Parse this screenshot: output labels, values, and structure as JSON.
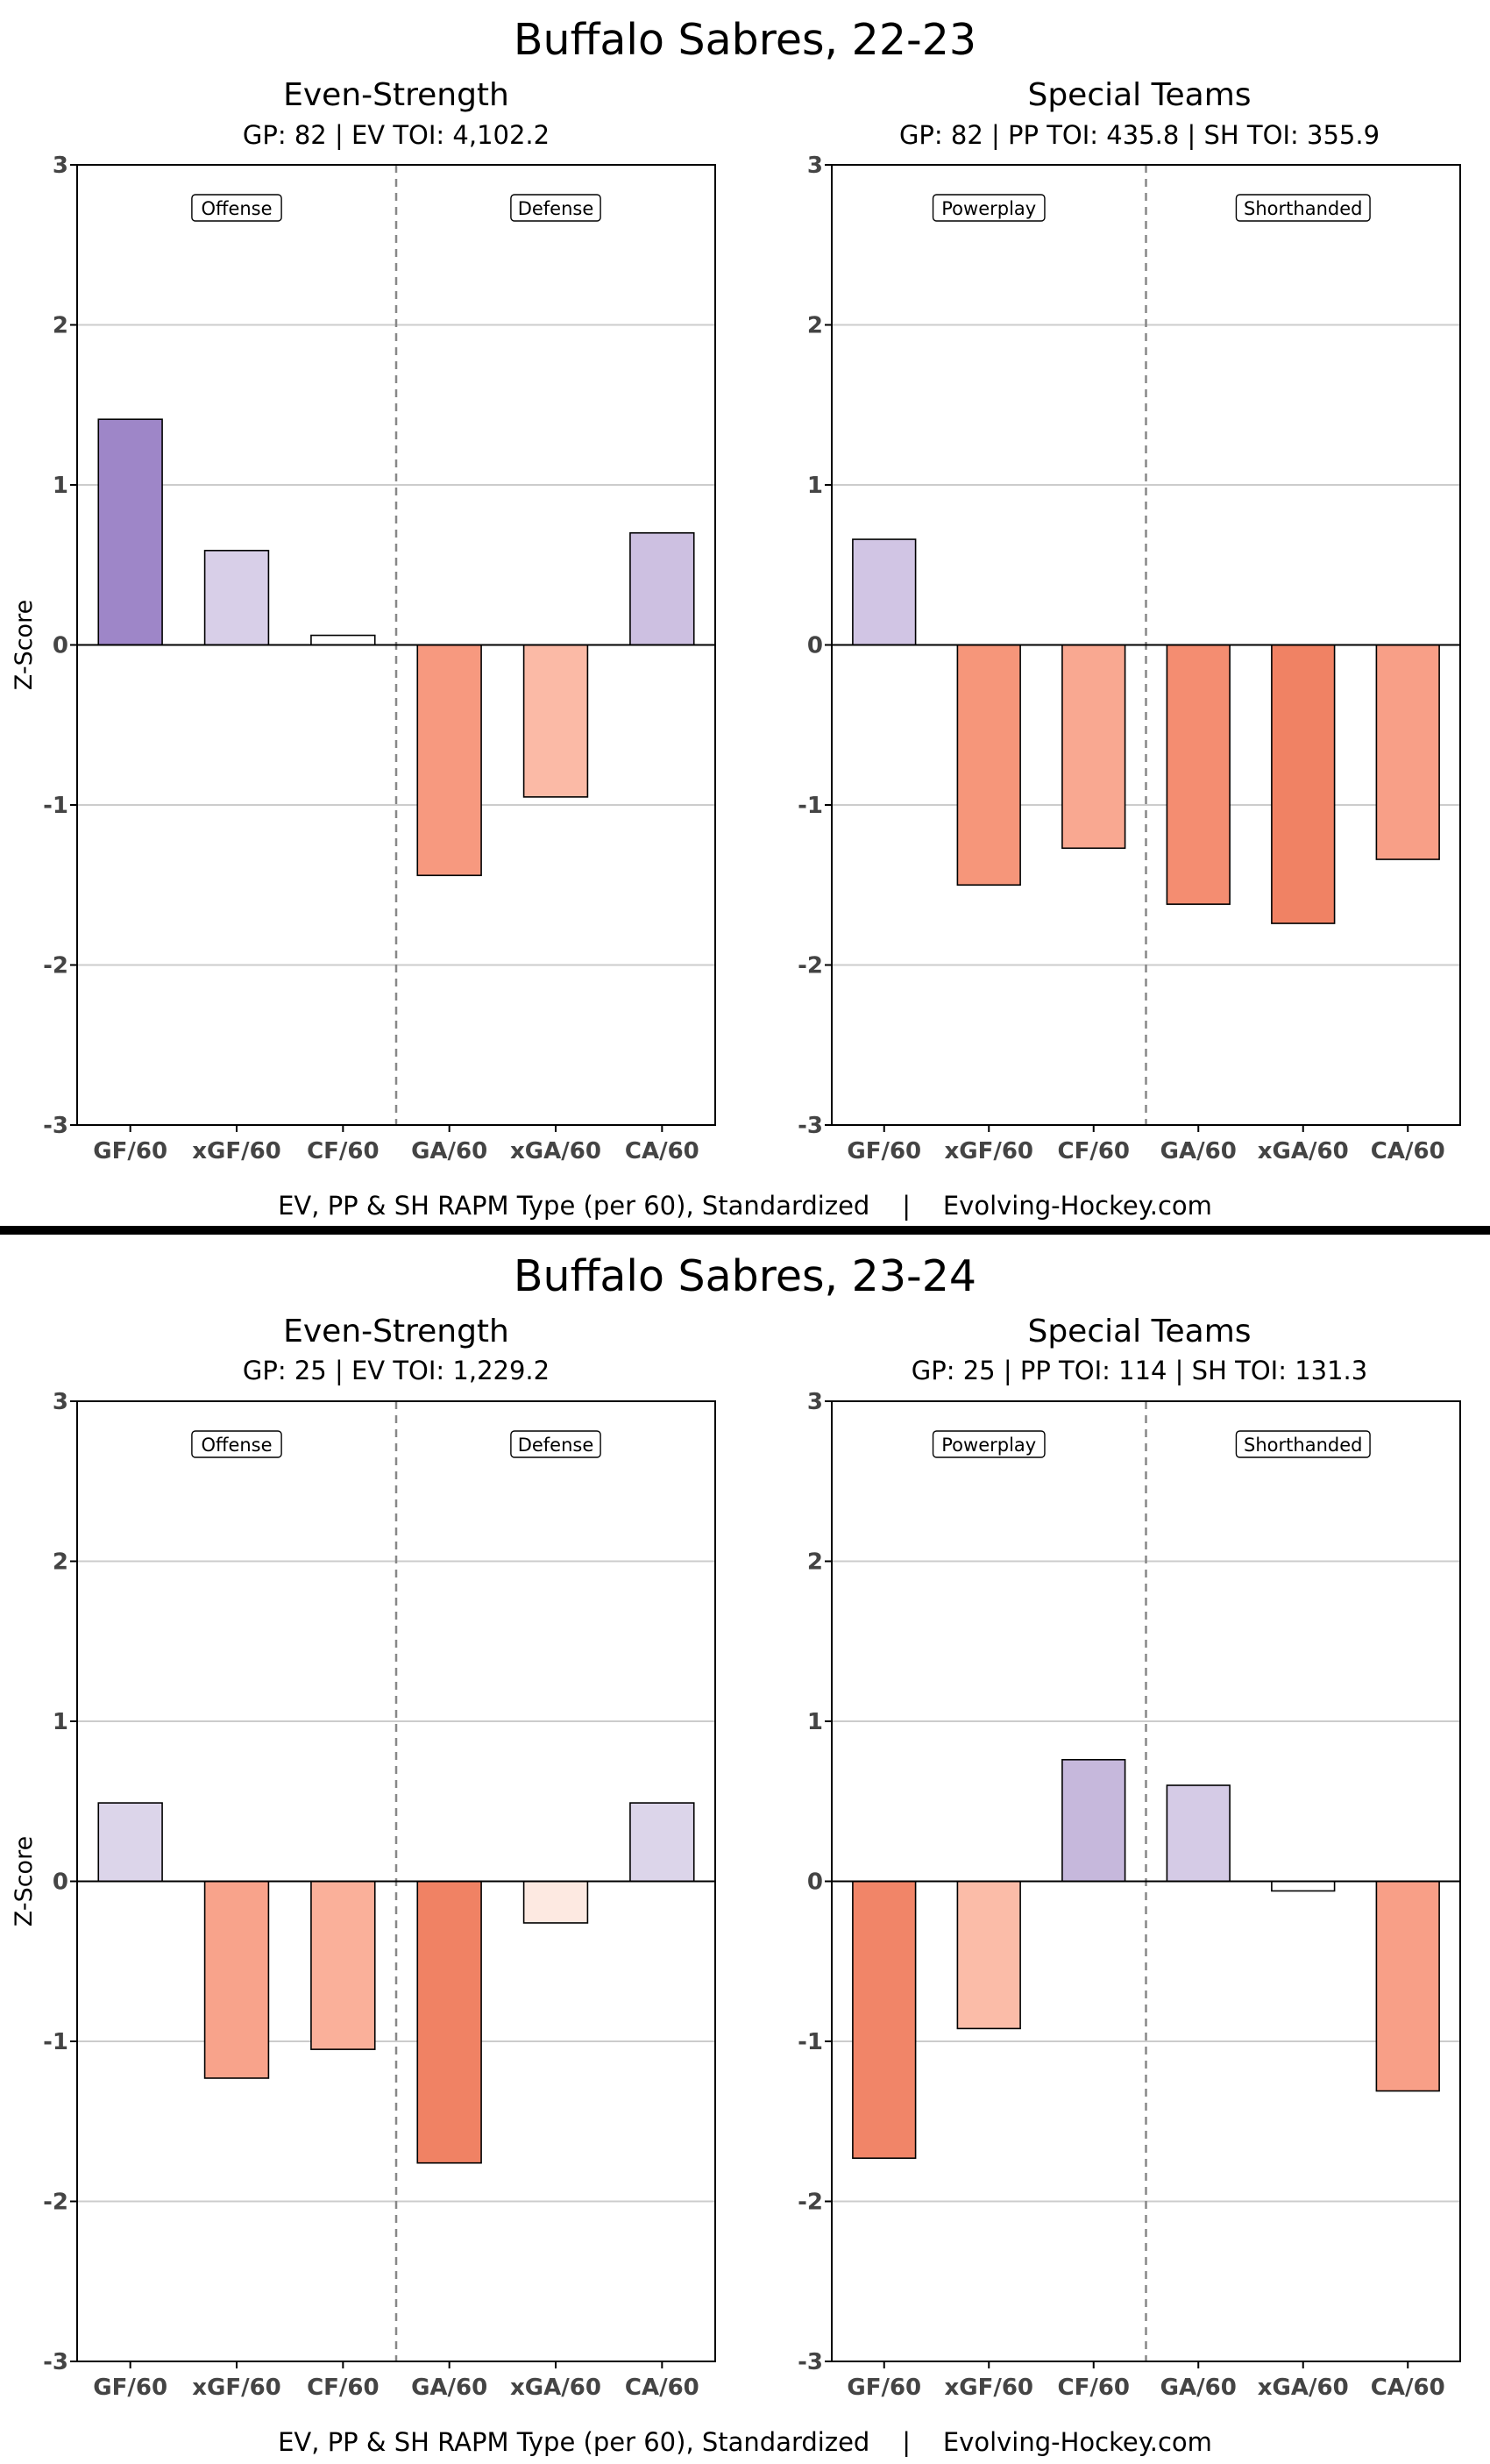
{
  "footer_text": "EV, PP & SH RAPM Type (per 60), Standardized    |    Evolving-Hockey.com",
  "colors": {
    "grid": "#cccccc",
    "divider_line": "#888888"
  },
  "seasons": [
    {
      "title": "Buffalo Sabres, 22-23",
      "panels": [
        {
          "title": "Even-Strength",
          "info": "GP: 82 | EV TOI: 4,102.2"
        },
        {
          "title": "Special Teams",
          "info": "GP: 82 | PP TOI: 435.8 | SH TOI: 355.9"
        }
      ]
    },
    {
      "title": "Buffalo Sabres, 23-24",
      "panels": [
        {
          "title": "Even-Strength",
          "info": "GP: 25 | EV TOI: 1,229.2"
        },
        {
          "title": "Special Teams",
          "info": "GP: 25 | PP TOI: 114 | SH TOI: 131.3"
        }
      ]
    }
  ],
  "chart_data": [
    {
      "type": "bar",
      "title": "Even-Strength",
      "ylabel": "Z-Score",
      "ylim": [
        -3,
        3
      ],
      "yticks": [
        "3",
        "2",
        "1",
        "0",
        "-1",
        "-2",
        "-3"
      ],
      "grid": true,
      "section_labels": [
        "Offense",
        "Defense"
      ],
      "categories": [
        "GF/60",
        "xGF/60",
        "CF/60",
        "GA/60",
        "xGA/60",
        "CA/60"
      ],
      "values": [
        1.41,
        0.59,
        0.06,
        -1.44,
        -0.95,
        0.7
      ],
      "colors": [
        "#9e86c8",
        "#d8cfe8",
        "#ffffff",
        "#f7997f",
        "#fbbaa6",
        "#cdc0e1"
      ]
    },
    {
      "type": "bar",
      "title": "Special Teams",
      "ylabel": "",
      "ylim": [
        -3,
        3
      ],
      "yticks": [
        "3",
        "2",
        "1",
        "0",
        "-1",
        "-2",
        "-3"
      ],
      "grid": true,
      "section_labels": [
        "Powerplay",
        "Shorthanded"
      ],
      "categories": [
        "GF/60",
        "xGF/60",
        "CF/60",
        "GA/60",
        "xGA/60",
        "CA/60"
      ],
      "values": [
        0.66,
        -1.5,
        -1.27,
        -1.62,
        -1.74,
        -1.34
      ],
      "colors": [
        "#d1c5e4",
        "#f6967a",
        "#f9a891",
        "#f48d71",
        "#f08264",
        "#f89f87"
      ]
    },
    {
      "type": "bar",
      "title": "Even-Strength",
      "ylabel": "Z-Score",
      "ylim": [
        -3,
        3
      ],
      "yticks": [
        "3",
        "2",
        "1",
        "0",
        "-1",
        "-2",
        "-3"
      ],
      "grid": true,
      "section_labels": [
        "Offense",
        "Defense"
      ],
      "categories": [
        "GF/60",
        "xGF/60",
        "CF/60",
        "GA/60",
        "xGA/60",
        "CA/60"
      ],
      "values": [
        0.49,
        -1.23,
        -1.05,
        -1.76,
        -0.26,
        0.49
      ],
      "colors": [
        "#dcd5ea",
        "#f8a38b",
        "#fab09a",
        "#f08264",
        "#fde9e1",
        "#dcd5ea"
      ]
    },
    {
      "type": "bar",
      "title": "Special Teams",
      "ylabel": "",
      "ylim": [
        -3,
        3
      ],
      "yticks": [
        "3",
        "2",
        "1",
        "0",
        "-1",
        "-2",
        "-3"
      ],
      "grid": true,
      "section_labels": [
        "Powerplay",
        "Shorthanded"
      ],
      "categories": [
        "GF/60",
        "xGF/60",
        "CF/60",
        "GA/60",
        "xGA/60",
        "CA/60"
      ],
      "values": [
        -1.73,
        -0.92,
        0.76,
        0.6,
        -0.06,
        -1.31
      ],
      "colors": [
        "#f18568",
        "#fbbca8",
        "#c6b8dc",
        "#d5cbe6",
        "#ffffff",
        "#f89f87"
      ]
    }
  ]
}
